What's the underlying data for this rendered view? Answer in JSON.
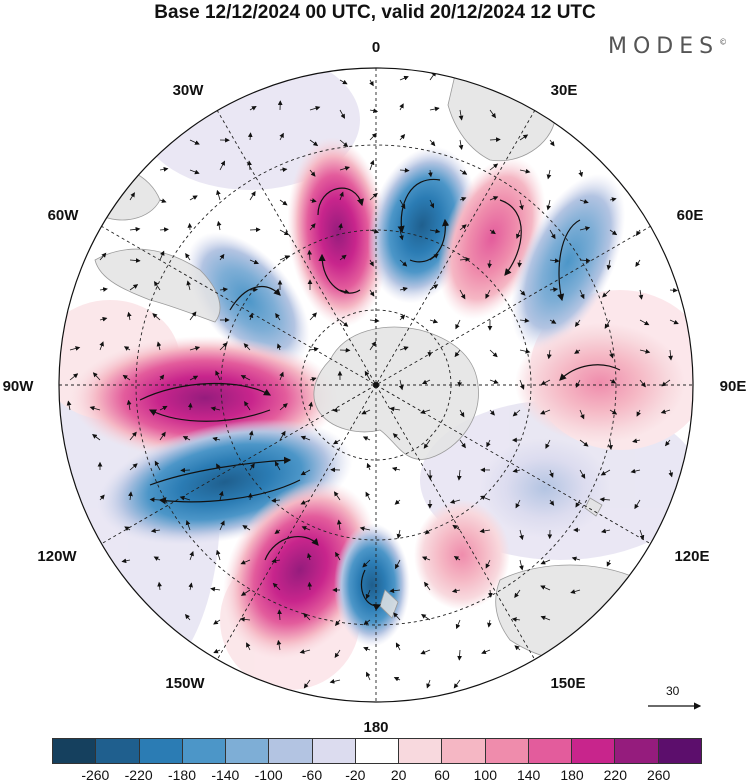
{
  "title": "Base 12/12/2024 00 UTC, valid 20/12/2024 12 UTC",
  "brand": "MODES",
  "brand_mark": "©",
  "map": {
    "projection": "south-polar-stereographic",
    "longitude_labels": {
      "top": "0",
      "top_right": "30E",
      "right_upper": "60E",
      "right": "90E",
      "right_lower": "120E",
      "bottom_right": "150E",
      "bottom": "180",
      "bottom_left": "150W",
      "left_lower": "120W",
      "left": "90W",
      "left_upper": "60W",
      "top_left": "30W"
    },
    "wind_reference_label": "30",
    "anomaly_centers": [
      {
        "name": "positive-0E-north",
        "sign": "+",
        "level": 260
      },
      {
        "name": "negative-20E",
        "sign": "-",
        "level": -220
      },
      {
        "name": "positive-40E",
        "sign": "+",
        "level": 180
      },
      {
        "name": "negative-65E",
        "sign": "-",
        "level": -180
      },
      {
        "name": "positive-85E",
        "sign": "+",
        "level": 100
      },
      {
        "name": "negative-50W",
        "sign": "-",
        "level": -140
      },
      {
        "name": "positive-90W",
        "sign": "+",
        "level": 260
      },
      {
        "name": "negative-110W",
        "sign": "-",
        "level": -220
      },
      {
        "name": "positive-150W",
        "sign": "+",
        "level": 220
      },
      {
        "name": "negative-175E",
        "sign": "-",
        "level": -180
      },
      {
        "name": "positive-160E",
        "sign": "+",
        "level": 100
      },
      {
        "name": "negative-120E",
        "sign": "-",
        "level": -60
      }
    ]
  },
  "colorbar": {
    "colors": [
      "#15405e",
      "#1f5f8e",
      "#2b7cb4",
      "#4c96c8",
      "#7eaed6",
      "#b3c4e2",
      "#dcdcef",
      "#ffffff",
      "#f8d9de",
      "#f5b7c4",
      "#ef8cac",
      "#e35c9c",
      "#c8258c",
      "#951c7d",
      "#5c0e6c"
    ],
    "ticks": [
      "-260",
      "-220",
      "-180",
      "-140",
      "-100",
      "-60",
      "-20",
      "20",
      "60",
      "100",
      "140",
      "180",
      "220",
      "260"
    ]
  }
}
